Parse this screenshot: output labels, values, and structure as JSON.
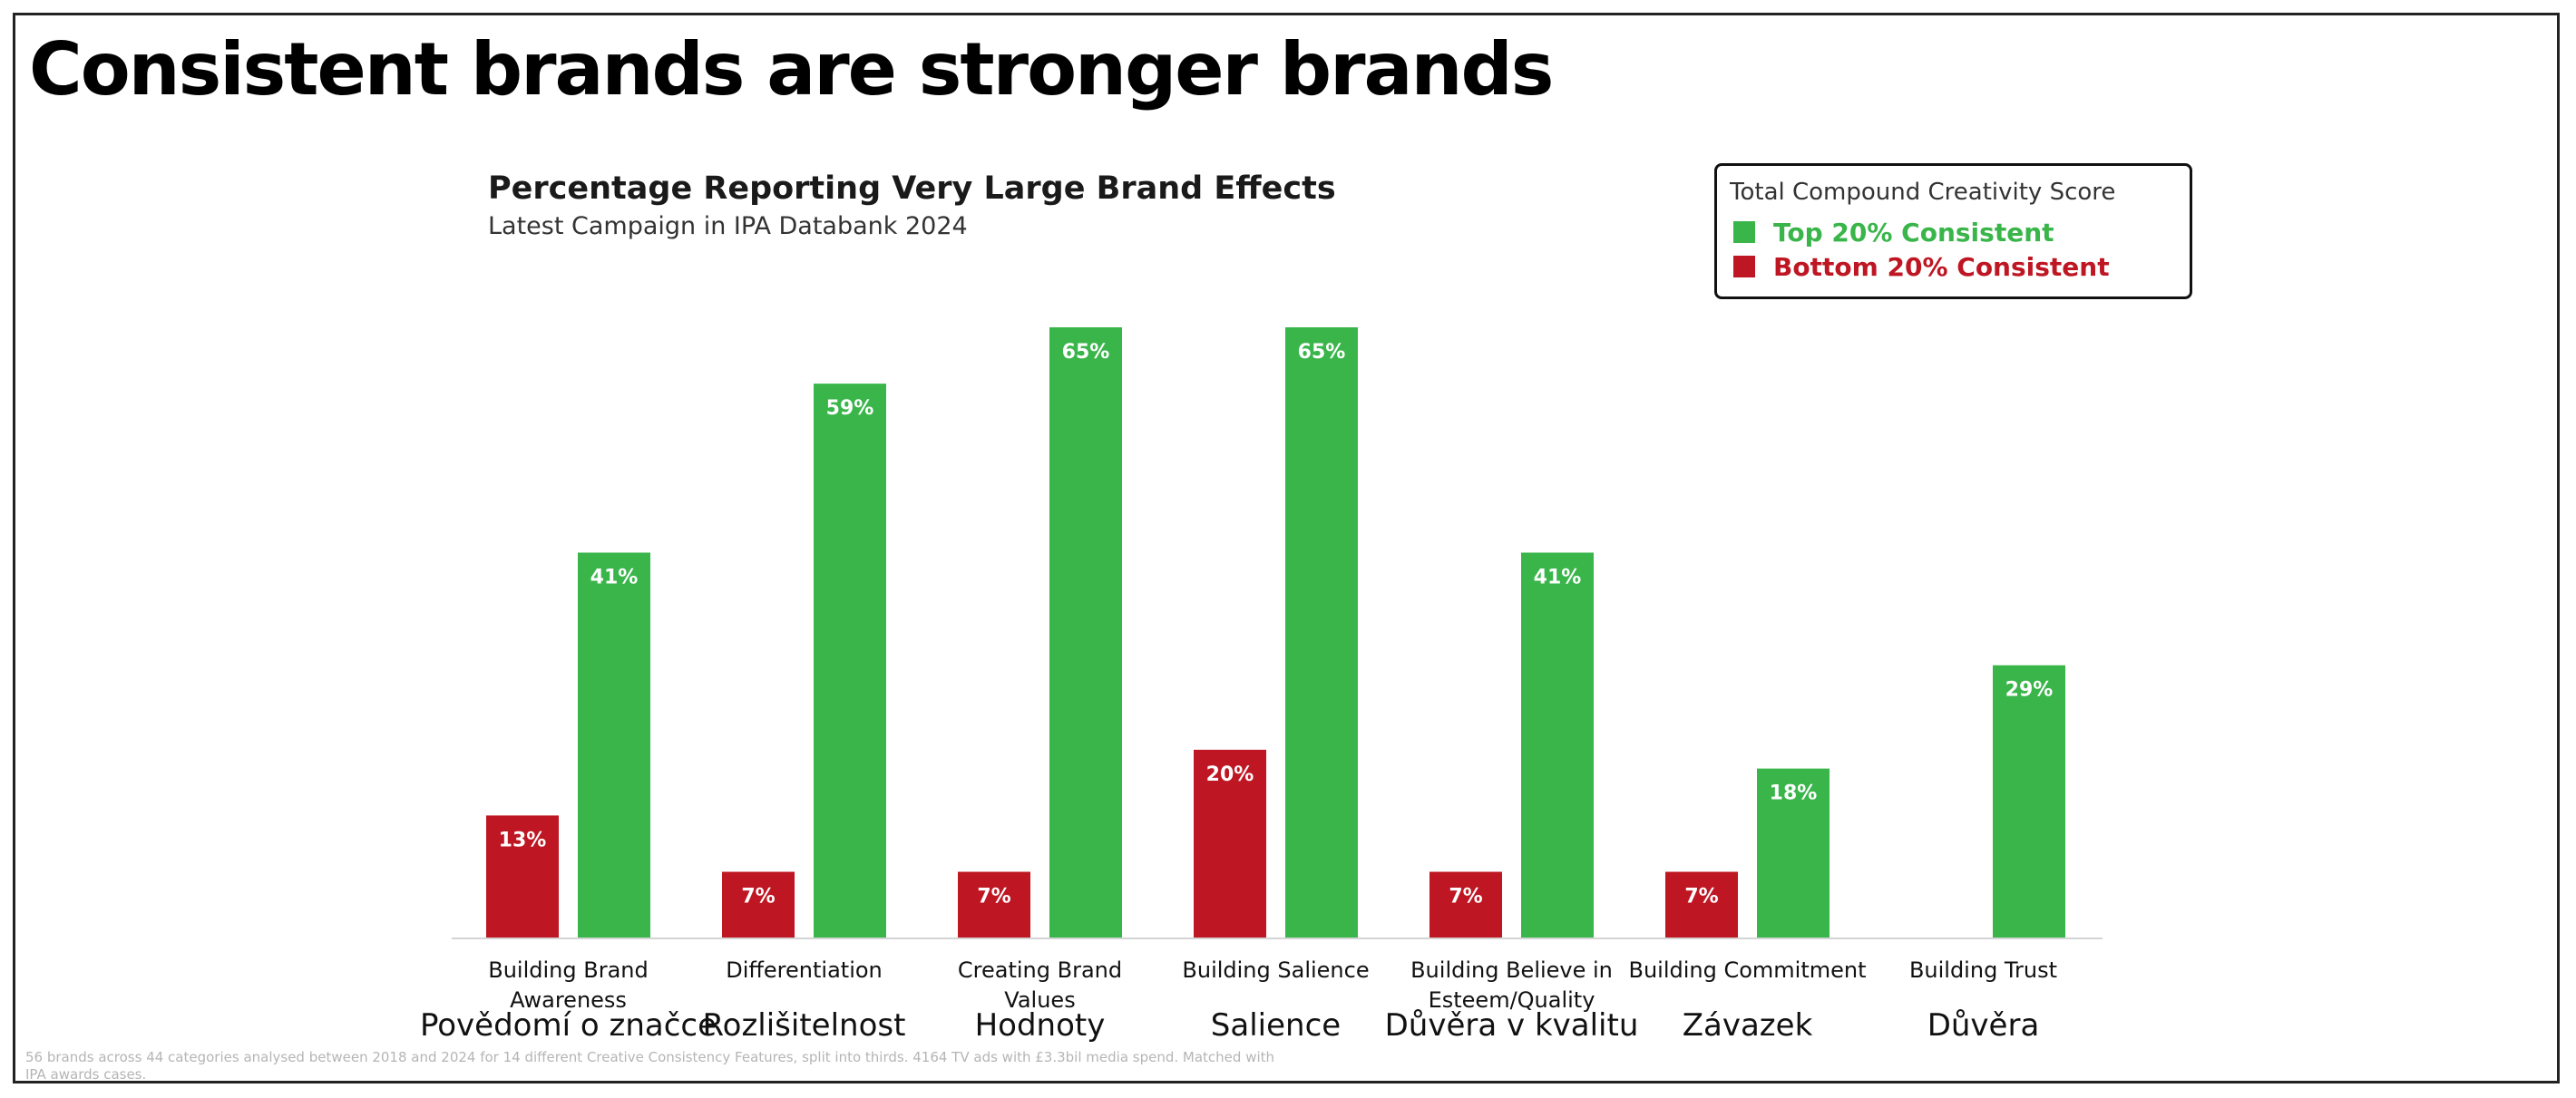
{
  "headline": "Consistent brands are stronger brands",
  "chart_data": {
    "type": "bar",
    "title": "Percentage Reporting Very Large Brand Effects",
    "subtitle": "Latest Campaign in IPA Databank 2024",
    "categories": [
      [
        "Building Brand",
        "Awareness"
      ],
      [
        "Differentiation"
      ],
      [
        "Creating Brand",
        "Values"
      ],
      [
        "Building Salience"
      ],
      [
        "Building Believe in",
        "Esteem/Quality"
      ],
      [
        "Building Commitment"
      ],
      [
        "Building Trust"
      ]
    ],
    "translations": [
      "Povědomí o značce",
      "Rozlišitelnost",
      "Hodnoty",
      "Salience",
      "Důvěra v kvalitu",
      "Závazek",
      "Důvěra"
    ],
    "series": [
      {
        "name": "Bottom 20% Consistent",
        "color": "#be1622",
        "values": [
          13,
          7,
          7,
          20,
          7,
          7,
          null
        ]
      },
      {
        "name": "Top 20% Consistent",
        "color": "#39b54a",
        "values": [
          41,
          59,
          65,
          65,
          41,
          18,
          29
        ]
      }
    ],
    "value_suffix": "%",
    "ylim": [
      0,
      65
    ],
    "grid": false,
    "legend": {
      "title": "Total Compound Creativity Score",
      "placement": "top-right",
      "order": [
        1,
        0
      ]
    }
  },
  "footnote": "56 brands across 44 categories analysed between 2018 and 2024 for 14 different Creative Consistency Features, split into thirds. 4164 TV ads with £3.3bil media spend. Matched with IPA awards cases."
}
